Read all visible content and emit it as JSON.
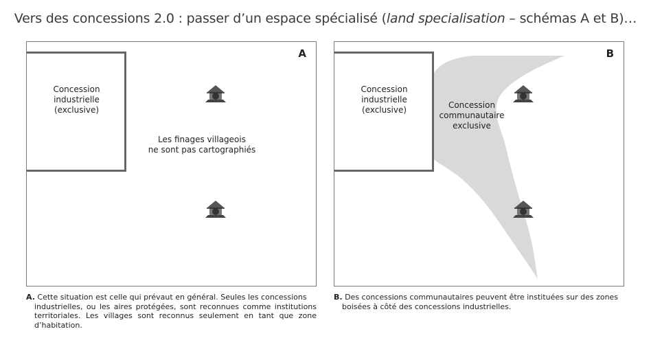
{
  "title": {
    "prefix": "Vers des concessions 2.0 : passer d’un espace spécialisé (",
    "italic": "land specialisation",
    "suffix": " – schémas A et B)…"
  },
  "panel_a": {
    "label": "A",
    "concession_lines": [
      "Concession",
      "industrielle",
      "(exclusive)"
    ],
    "center_lines": [
      "Les finages villageois",
      "ne sont pas cartographiés"
    ],
    "village_icon": "village-hut-icon"
  },
  "panel_b": {
    "label": "B",
    "concession_lines": [
      "Concession",
      "industrielle",
      "(exclusive)"
    ],
    "community_lines": [
      "Concession",
      "communautaire",
      "exclusive"
    ],
    "community_color": "#d9d9d9",
    "village_icon": "village-hut-icon"
  },
  "captions": {
    "a_letter": "A.",
    "a_text_first": "Cette situation est celle qui prévaut en général. Seules les concessions",
    "a_text_rest": "industrielles, ou les aires protégées, sont reconnues comme institutions territoriales. Les villages sont reconnus seulement en tant que zone d’habitation.",
    "b_letter": "B.",
    "b_text_first": "Des concessions communautaires peuvent être instituées sur des zones",
    "b_text_rest": "boisées à côté des concessions industrielles."
  }
}
